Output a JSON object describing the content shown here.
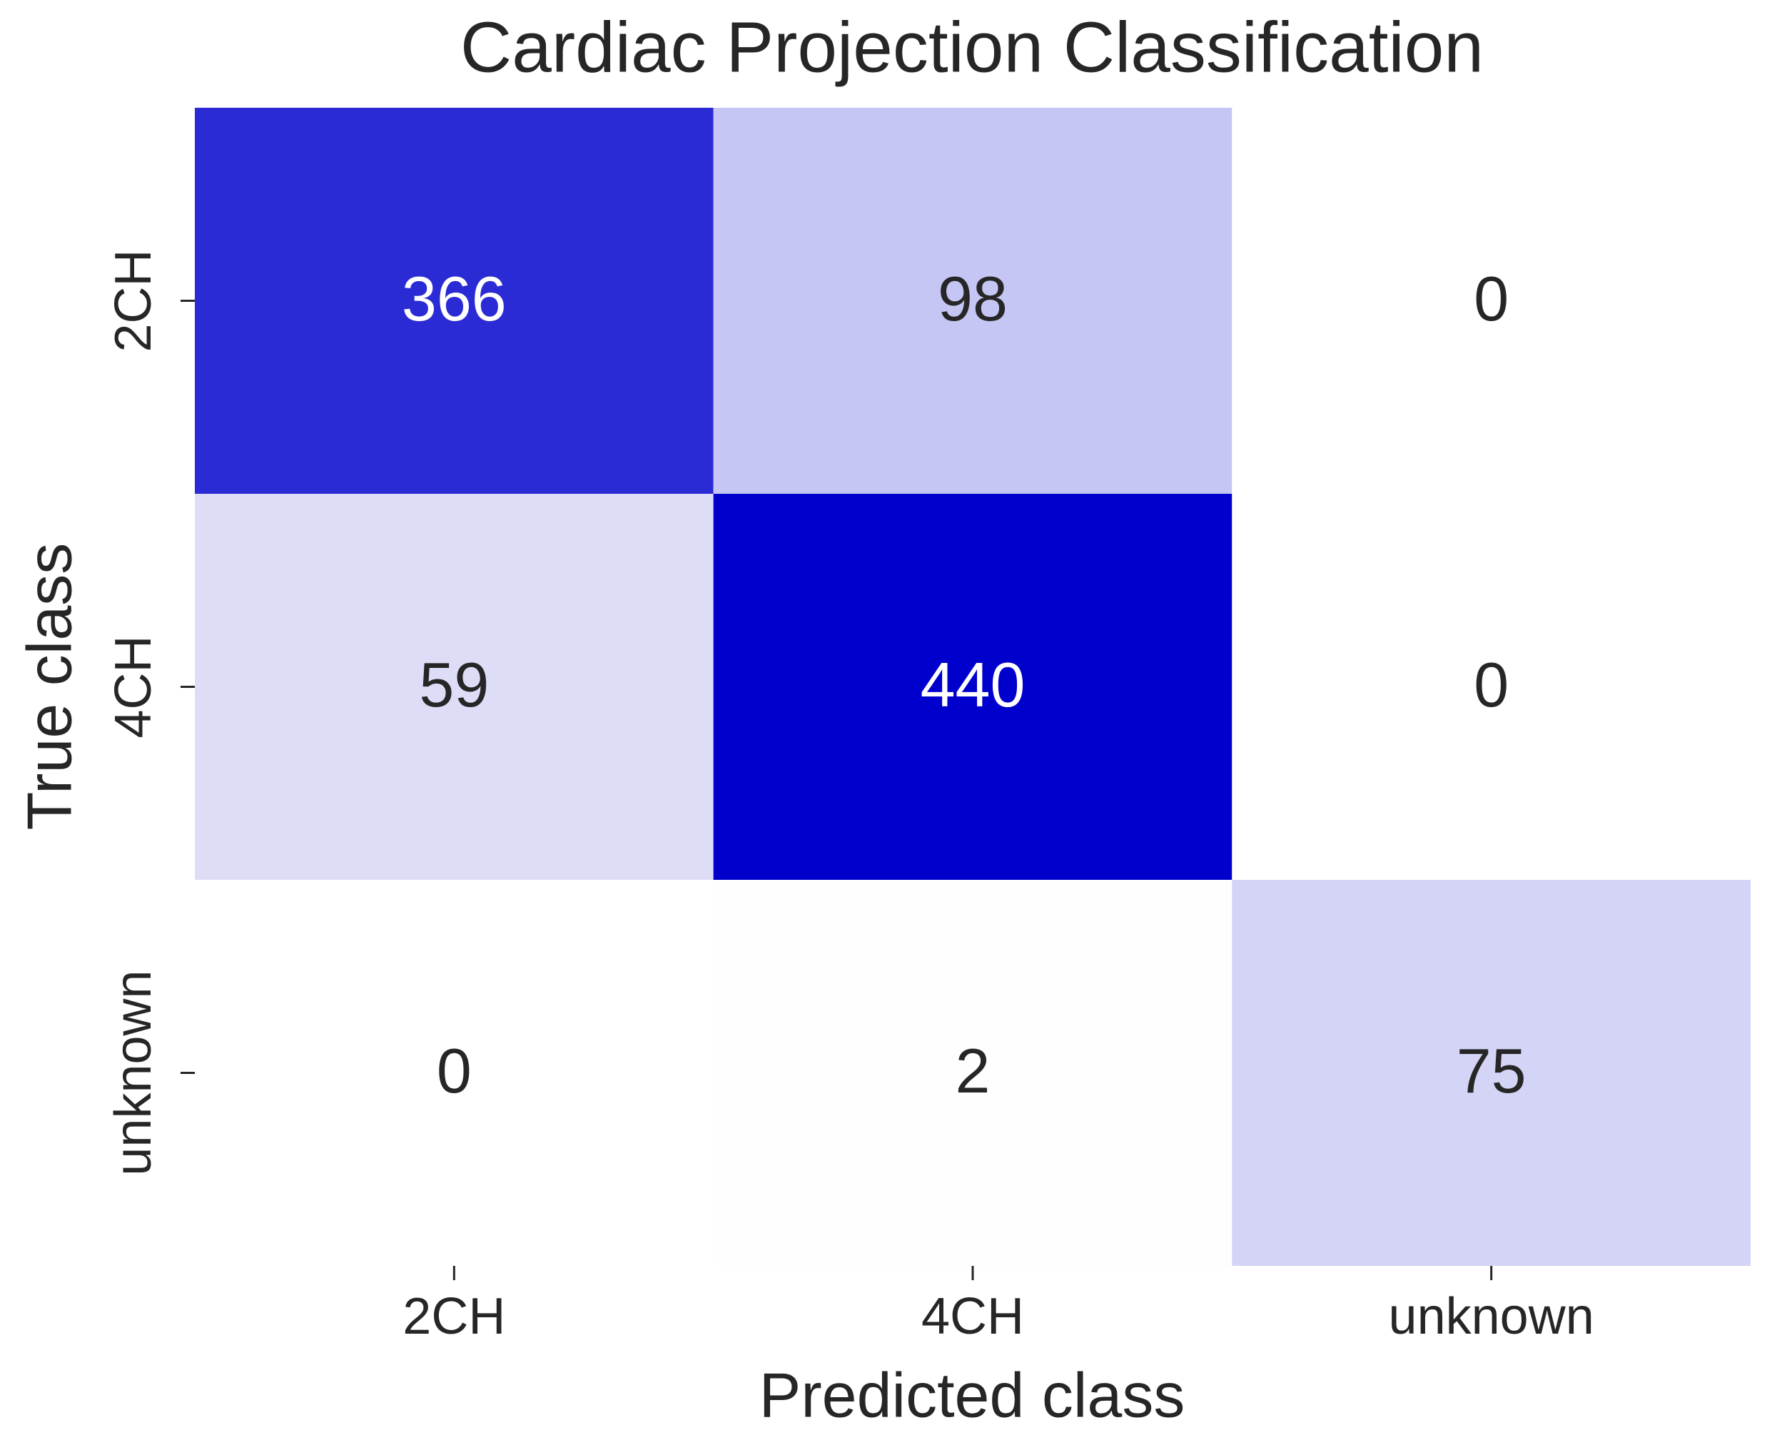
{
  "chart_data": {
    "type": "heatmap",
    "title": "Cardiac Projection Classification",
    "x_label": "Predicted class",
    "y_label": "True class",
    "x_categories": [
      "2CH",
      "4CH",
      "unknown"
    ],
    "y_categories": [
      "2CH",
      "4CH",
      "unknown"
    ],
    "values": [
      [
        366,
        98,
        0
      ],
      [
        59,
        440,
        0
      ],
      [
        0,
        2,
        75
      ]
    ],
    "colormap": [
      "#ffffff",
      "#0000cc"
    ]
  }
}
